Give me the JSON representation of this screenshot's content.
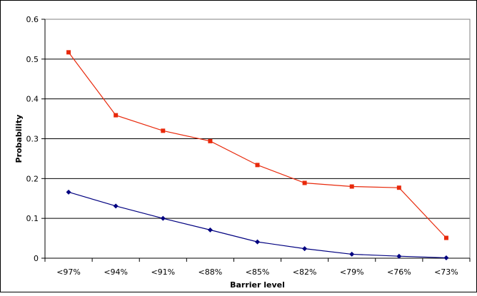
{
  "chart_data": {
    "type": "line",
    "title": "",
    "xlabel": "Barrier level",
    "ylabel": "Probability",
    "categories": [
      "<97%",
      "<94%",
      "<91%",
      "<88%",
      "<85%",
      "<82%",
      "<79%",
      "<76%",
      "<73%"
    ],
    "ylim": [
      0,
      0.6
    ],
    "yticks": [
      "0",
      "0.1",
      "0.2",
      "0.3",
      "0.4",
      "0.5",
      "0.6"
    ],
    "grid": true,
    "legend": "none",
    "series": [
      {
        "color": "#e8290b",
        "marker": "square",
        "values": [
          0.517,
          0.359,
          0.32,
          0.294,
          0.234,
          0.189,
          0.18,
          0.177,
          0.051
        ]
      },
      {
        "color": "#000080",
        "marker": "diamond",
        "values": [
          0.166,
          0.131,
          0.1,
          0.071,
          0.041,
          0.024,
          0.01,
          0.005,
          0.001
        ]
      }
    ]
  }
}
